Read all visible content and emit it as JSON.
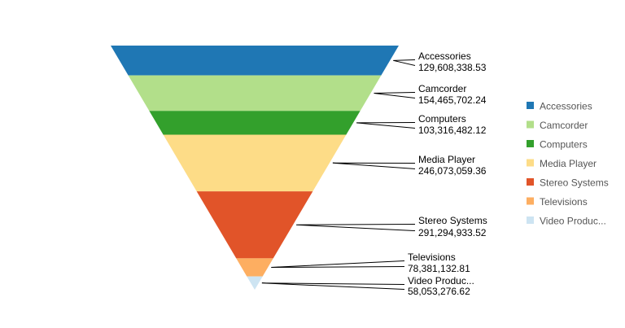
{
  "chart_data": {
    "type": "funnel",
    "title": "",
    "legend_position": "right",
    "categories": [
      "Accessories",
      "Camcorder",
      "Computers",
      "Media Player",
      "Stereo Systems",
      "Televisions",
      "Video Produc..."
    ],
    "values": [
      129608338.53,
      154465702.24,
      103316482.12,
      246073059.36,
      291294933.52,
      78381132.81,
      58053276.62
    ],
    "value_labels": [
      "129,608,338.53",
      "154,465,702.24",
      "103,316,482.12",
      "246,073,059.36",
      "291,294,933.52",
      "78,381,132.81",
      "58,053,276.62"
    ],
    "colors": [
      "#1f77b4",
      "#b2df8a",
      "#33a02c",
      "#fddc87",
      "#e15429",
      "#fdae61",
      "#cde4f2"
    ]
  }
}
